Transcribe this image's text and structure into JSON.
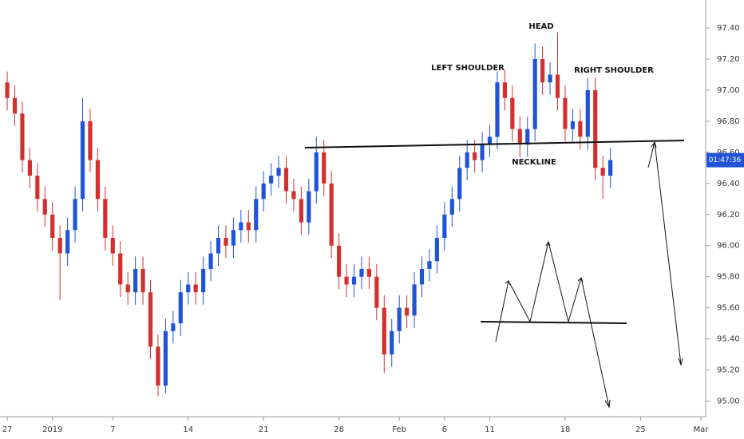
{
  "chart_data": {
    "type": "candlestick",
    "up_color": "#2053d6",
    "down_color": "#d32f2f",
    "countdown": "01:47:36",
    "annotations": {
      "head": "HEAD",
      "left_shoulder": "LEFT SHOULDER",
      "right_shoulder": "RIGHT SHOULDER",
      "neckline": "NECKLINE"
    },
    "xlim": [
      -0.48,
      46.32
    ],
    "xticks": [
      {
        "value": 0,
        "label": "27"
      },
      {
        "value": 3,
        "label": "2019"
      },
      {
        "value": 7,
        "label": "7"
      },
      {
        "value": 12,
        "label": "14"
      },
      {
        "value": 17,
        "label": "21"
      },
      {
        "value": 22,
        "label": "28"
      },
      {
        "value": 26,
        "label": "Feb"
      },
      {
        "value": 29,
        "label": "6"
      },
      {
        "value": 32,
        "label": "11"
      },
      {
        "value": 37,
        "label": "18"
      },
      {
        "value": 42,
        "label": "25"
      },
      {
        "value": 46,
        "label": "Mar"
      }
    ],
    "ylim": [
      94.9,
      97.58
    ],
    "yticks": [
      {
        "value": 95.0,
        "label": "95.00"
      },
      {
        "value": 95.2,
        "label": "95.20"
      },
      {
        "value": 95.4,
        "label": "95.40"
      },
      {
        "value": 95.6,
        "label": "95.60"
      },
      {
        "value": 95.8,
        "label": "95.80"
      },
      {
        "value": 96.0,
        "label": "96.00"
      },
      {
        "value": 96.2,
        "label": "96.20"
      },
      {
        "value": 96.4,
        "label": "96.40"
      },
      {
        "value": 96.6,
        "label": "96.60"
      },
      {
        "value": 96.8,
        "label": "96.80"
      },
      {
        "value": 97.0,
        "label": "97.00"
      },
      {
        "value": 97.2,
        "label": "97.20"
      },
      {
        "value": 97.4,
        "label": "97.40"
      }
    ],
    "x": [
      0,
      0.5,
      1,
      1.5,
      2,
      2.5,
      3,
      3.5,
      4,
      4.5,
      5,
      5.5,
      6,
      6.5,
      7,
      7.5,
      8,
      8.5,
      9,
      9.5,
      10,
      10.5,
      11,
      11.5,
      12,
      12.5,
      13,
      13.5,
      14,
      14.5,
      15,
      15.5,
      16,
      16.5,
      17,
      17.5,
      18,
      18.5,
      19,
      19.5,
      20,
      20.5,
      21,
      21.5,
      22,
      22.5,
      23,
      23.5,
      24,
      24.5,
      25,
      25.5,
      26,
      26.5,
      27,
      27.5,
      28,
      28.5,
      29,
      29.5,
      30,
      30.5,
      31,
      31.5,
      32,
      32.5,
      33,
      33.5,
      34,
      34.5,
      35,
      35.5,
      36,
      36.5,
      37,
      37.5,
      38,
      38.5,
      39,
      39.5,
      40
    ],
    "open": [
      97.05,
      96.95,
      96.85,
      96.55,
      96.45,
      96.3,
      96.2,
      96.05,
      95.95,
      96.1,
      96.3,
      96.8,
      96.55,
      96.3,
      96.05,
      95.95,
      95.75,
      95.7,
      95.85,
      95.7,
      95.35,
      95.1,
      95.45,
      95.5,
      95.7,
      95.75,
      95.7,
      95.85,
      95.95,
      96.05,
      96.0,
      96.1,
      96.15,
      96.1,
      96.3,
      96.4,
      96.45,
      96.5,
      96.35,
      96.3,
      96.15,
      96.35,
      96.6,
      96.4,
      96.0,
      95.8,
      95.75,
      95.8,
      95.85,
      95.8,
      95.6,
      95.3,
      95.45,
      95.6,
      95.55,
      95.75,
      95.85,
      95.9,
      96.05,
      96.2,
      96.3,
      96.5,
      96.6,
      96.55,
      96.65,
      96.7,
      97.05,
      96.95,
      96.75,
      96.65,
      96.75,
      97.2,
      97.05,
      97.1,
      96.95,
      96.75,
      96.8,
      96.7,
      97.0,
      96.5,
      96.45
    ],
    "high": [
      97.12,
      97.03,
      96.93,
      96.63,
      96.53,
      96.38,
      96.28,
      96.13,
      96.18,
      96.38,
      96.95,
      96.88,
      96.63,
      96.38,
      96.13,
      96.03,
      95.83,
      95.93,
      95.93,
      95.78,
      95.43,
      95.53,
      95.58,
      95.78,
      95.83,
      95.83,
      95.93,
      96.03,
      96.13,
      96.13,
      96.18,
      96.23,
      96.23,
      96.38,
      96.48,
      96.53,
      96.58,
      96.58,
      96.43,
      96.38,
      96.43,
      96.7,
      96.68,
      96.48,
      96.08,
      95.88,
      95.88,
      95.93,
      95.93,
      95.88,
      95.68,
      95.53,
      95.68,
      95.68,
      95.83,
      95.93,
      95.98,
      96.13,
      96.28,
      96.38,
      96.58,
      96.68,
      96.68,
      96.73,
      96.78,
      97.12,
      97.13,
      97.03,
      96.83,
      96.83,
      97.3,
      97.28,
      97.18,
      97.37,
      97.03,
      96.88,
      96.88,
      97.08,
      97.08,
      96.58,
      96.63
    ],
    "low": [
      96.87,
      96.77,
      96.47,
      96.37,
      96.22,
      96.12,
      95.97,
      95.65,
      95.87,
      96.02,
      96.22,
      96.47,
      96.22,
      95.97,
      95.87,
      95.67,
      95.62,
      95.62,
      95.62,
      95.27,
      95.03,
      95.05,
      95.37,
      95.42,
      95.62,
      95.62,
      95.62,
      95.77,
      95.87,
      95.92,
      95.92,
      96.02,
      96.02,
      96.02,
      96.22,
      96.32,
      96.37,
      96.27,
      96.22,
      96.07,
      96.07,
      96.27,
      96.32,
      95.92,
      95.72,
      95.67,
      95.67,
      95.72,
      95.72,
      95.52,
      95.18,
      95.22,
      95.37,
      95.47,
      95.47,
      95.67,
      95.77,
      95.82,
      95.97,
      96.12,
      96.22,
      96.42,
      96.47,
      96.47,
      96.57,
      96.62,
      96.87,
      96.67,
      96.57,
      96.57,
      96.67,
      96.97,
      96.97,
      96.87,
      96.67,
      96.67,
      96.62,
      96.62,
      96.42,
      96.3,
      96.37
    ],
    "close": [
      96.95,
      96.85,
      96.55,
      96.45,
      96.3,
      96.2,
      96.05,
      95.95,
      96.1,
      96.3,
      96.8,
      96.55,
      96.3,
      96.05,
      95.95,
      95.75,
      95.7,
      95.85,
      95.7,
      95.35,
      95.1,
      95.45,
      95.5,
      95.7,
      95.75,
      95.7,
      95.85,
      95.95,
      96.05,
      96.0,
      96.1,
      96.15,
      96.1,
      96.3,
      96.4,
      96.45,
      96.5,
      96.35,
      96.3,
      96.15,
      96.35,
      96.6,
      96.4,
      96.0,
      95.8,
      95.75,
      95.8,
      95.85,
      95.8,
      95.6,
      95.3,
      95.45,
      95.6,
      95.55,
      95.75,
      95.85,
      95.9,
      96.05,
      96.2,
      96.3,
      96.5,
      96.6,
      96.55,
      96.65,
      96.7,
      97.05,
      96.95,
      96.75,
      96.65,
      96.75,
      97.2,
      97.05,
      97.1,
      96.95,
      96.75,
      96.8,
      96.7,
      97.0,
      96.5,
      96.45,
      96.55
    ]
  }
}
